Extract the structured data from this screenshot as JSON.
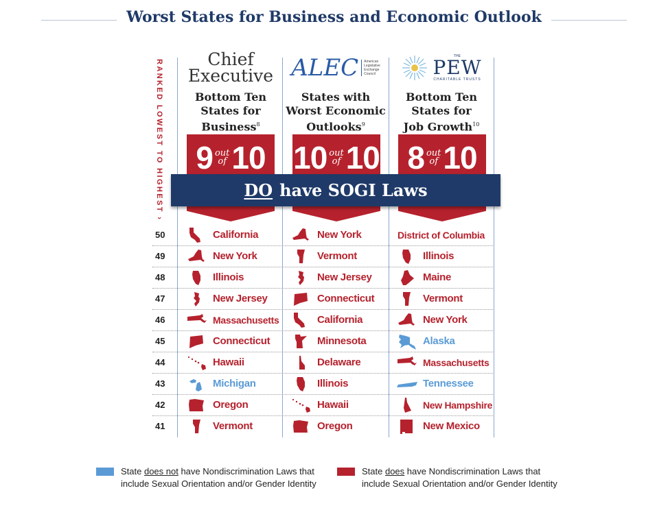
{
  "title": "Worst States for Business and Economic Outlook",
  "vertical_label": "RANKED LOWEST TO HIGHEST ›",
  "colors": {
    "red": "#b5222d",
    "blue": "#5b9bd5",
    "navy": "#1f3a68"
  },
  "banner": {
    "emph": "DO",
    "rest": "have SOGI Laws"
  },
  "columns": [
    {
      "logo": {
        "line1": "Chief",
        "line2": "Executive"
      },
      "heading": [
        "Bottom Ten",
        "States for",
        "Business"
      ],
      "footnote": "8",
      "score": {
        "num": "9",
        "out": "out",
        "of": "of",
        "den": "10"
      }
    },
    {
      "logo": {
        "word": "ALEC",
        "sub1": "American",
        "sub2": "Legislative",
        "sub3": "Exchange",
        "sub4": "Council"
      },
      "heading": [
        "States with",
        "Worst Economic",
        "Outlooks"
      ],
      "footnote": "9",
      "score": {
        "num": "10",
        "out": "out",
        "of": "of",
        "den": "10"
      }
    },
    {
      "logo": {
        "the": "THE",
        "word": "PEW",
        "sub": "CHARITABLE TRUSTS"
      },
      "heading": [
        "Bottom Ten",
        "States for",
        "Job Growth"
      ],
      "footnote": "10",
      "score": {
        "num": "8",
        "out": "out",
        "of": "of",
        "den": "10"
      }
    }
  ],
  "rows": [
    {
      "rank": "50",
      "states": [
        {
          "name": "California",
          "law": true,
          "icon": "california-shape-icon"
        },
        {
          "name": "New York",
          "law": true,
          "icon": "new-york-shape-icon"
        },
        {
          "name": "District of Columbia",
          "law": true,
          "icon": ""
        }
      ]
    },
    {
      "rank": "49",
      "states": [
        {
          "name": "New York",
          "law": true,
          "icon": "new-york-shape-icon"
        },
        {
          "name": "Vermont",
          "law": true,
          "icon": "vermont-shape-icon"
        },
        {
          "name": "Illinois",
          "law": true,
          "icon": "illinois-shape-icon"
        }
      ]
    },
    {
      "rank": "48",
      "states": [
        {
          "name": "Illinois",
          "law": true,
          "icon": "illinois-shape-icon"
        },
        {
          "name": "New Jersey",
          "law": true,
          "icon": "new-jersey-shape-icon"
        },
        {
          "name": "Maine",
          "law": true,
          "icon": "maine-shape-icon"
        }
      ]
    },
    {
      "rank": "47",
      "states": [
        {
          "name": "New Jersey",
          "law": true,
          "icon": "new-jersey-shape-icon"
        },
        {
          "name": "Connecticut",
          "law": true,
          "icon": "connecticut-shape-icon"
        },
        {
          "name": "Vermont",
          "law": true,
          "icon": "vermont-shape-icon"
        }
      ]
    },
    {
      "rank": "46",
      "states": [
        {
          "name": "Massachusetts",
          "law": true,
          "icon": "massachusetts-shape-icon"
        },
        {
          "name": "California",
          "law": true,
          "icon": "california-shape-icon"
        },
        {
          "name": "New York",
          "law": true,
          "icon": "new-york-shape-icon"
        }
      ]
    },
    {
      "rank": "45",
      "states": [
        {
          "name": "Connecticut",
          "law": true,
          "icon": "connecticut-shape-icon"
        },
        {
          "name": "Minnesota",
          "law": true,
          "icon": "minnesota-shape-icon"
        },
        {
          "name": "Alaska",
          "law": false,
          "icon": "alaska-shape-icon"
        }
      ]
    },
    {
      "rank": "44",
      "states": [
        {
          "name": "Hawaii",
          "law": true,
          "icon": "hawaii-shape-icon"
        },
        {
          "name": "Delaware",
          "law": true,
          "icon": "delaware-shape-icon"
        },
        {
          "name": "Massachusetts",
          "law": true,
          "icon": "massachusetts-shape-icon"
        }
      ]
    },
    {
      "rank": "43",
      "states": [
        {
          "name": "Michigan",
          "law": false,
          "icon": "michigan-shape-icon"
        },
        {
          "name": "Illinois",
          "law": true,
          "icon": "illinois-shape-icon"
        },
        {
          "name": "Tennessee",
          "law": false,
          "icon": "tennessee-shape-icon"
        }
      ]
    },
    {
      "rank": "42",
      "states": [
        {
          "name": "Oregon",
          "law": true,
          "icon": "oregon-shape-icon"
        },
        {
          "name": "Hawaii",
          "law": true,
          "icon": "hawaii-shape-icon"
        },
        {
          "name": "New Hampshire",
          "law": true,
          "icon": "new-hampshire-shape-icon"
        }
      ]
    },
    {
      "rank": "41",
      "states": [
        {
          "name": "Vermont",
          "law": true,
          "icon": "vermont-shape-icon"
        },
        {
          "name": "Oregon",
          "law": true,
          "icon": "oregon-shape-icon"
        },
        {
          "name": "New Mexico",
          "law": true,
          "icon": "new-mexico-shape-icon"
        }
      ]
    }
  ],
  "legend": [
    {
      "color": "blue",
      "pre": "State ",
      "u": "does not",
      "post": " have Nondiscrimination Laws that",
      "line2": "include Sexual Orientation and/or Gender Identity"
    },
    {
      "color": "red",
      "pre": "State ",
      "u": "does",
      "post": " have Nondiscrimination Laws that",
      "line2": "include Sexual Orientation and/or Gender Identity"
    }
  ]
}
